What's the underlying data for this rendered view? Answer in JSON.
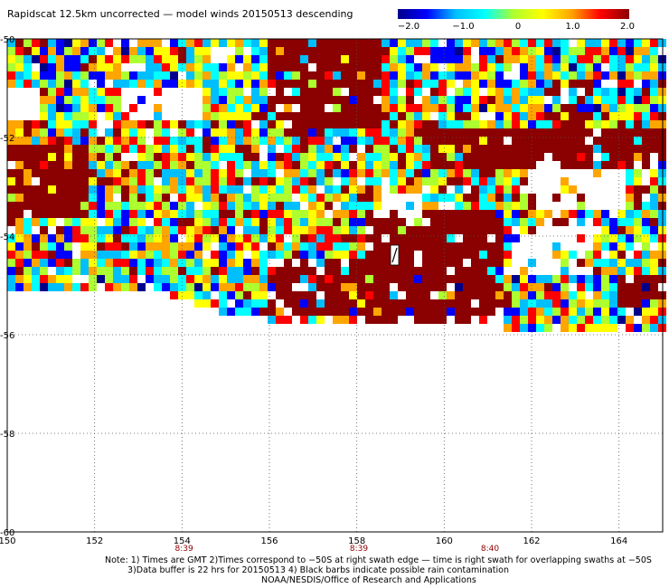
{
  "title": "Rapidscat 12.5km uncorrected — model winds 20150513 descending",
  "colorbar": {
    "tick_labels": [
      "−2.0",
      "−1.0",
      "0",
      "1.0",
      "2.0"
    ],
    "min": -2.0,
    "max": 2.0,
    "colors": [
      "#00008b",
      "#0000ff",
      "#00bfff",
      "#00ffff",
      "#adff2f",
      "#ffff00",
      "#ffa500",
      "#ff0000",
      "#8b0000"
    ]
  },
  "axes": {
    "lat_labels": [
      "-50",
      "-52",
      "-54",
      "-56",
      "-58",
      "-60"
    ],
    "lon_labels": [
      "150",
      "152",
      "154",
      "156",
      "158",
      "160",
      "162",
      "164"
    ],
    "lat_range": [
      -60,
      -50
    ],
    "lon_range": [
      150,
      165
    ]
  },
  "time_labels": [
    "8:39",
    "8:39",
    "8:40"
  ],
  "time_label_lons": [
    155,
    159,
    162
  ],
  "notes": [
    "Note: 1) Times are GMT 2)Times correspond to −50S at right swath edge — time is right swath for overlapping swaths at −50S",
    "3)Data buffer is 22 hrs for 20150513 4) Black barbs indicate possible rain contamination",
    "NOAA/NESDIS/Office of Research and Applications"
  ]
}
